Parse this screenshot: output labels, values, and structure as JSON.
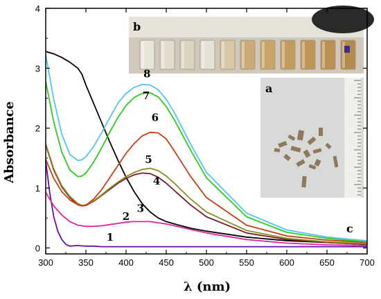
{
  "chart_data": {
    "type": "line",
    "title": "",
    "xlabel": "λ (nm)",
    "ylabel": "Absorbance",
    "xlim": [
      300,
      700
    ],
    "ylim": [
      -0.1,
      4
    ],
    "x_ticks": [
      300,
      350,
      400,
      450,
      500,
      550,
      600,
      650,
      700
    ],
    "y_ticks": [
      0,
      1,
      2,
      3,
      4
    ],
    "grid": false,
    "legend": "none",
    "series": [
      {
        "name": "1",
        "color": "#6a0dad",
        "x": [
          300,
          305,
          310,
          315,
          320,
          325,
          330,
          340,
          350,
          360,
          370,
          380,
          400,
          450,
          500,
          550,
          600,
          650,
          700
        ],
        "y": [
          1.45,
          0.92,
          0.52,
          0.28,
          0.14,
          0.06,
          0.03,
          0.04,
          0.03,
          0.03,
          0.02,
          0.02,
          0.02,
          0.02,
          0.02,
          0.02,
          0.02,
          0.02,
          0.02
        ]
      },
      {
        "name": "2",
        "color": "#e0249a",
        "x": [
          300,
          310,
          320,
          330,
          340,
          350,
          360,
          370,
          380,
          390,
          400,
          410,
          420,
          430,
          440,
          450,
          460,
          480,
          500,
          550,
          600,
          650,
          700
        ],
        "y": [
          0.93,
          0.7,
          0.55,
          0.44,
          0.38,
          0.36,
          0.36,
          0.37,
          0.39,
          0.41,
          0.43,
          0.44,
          0.44,
          0.44,
          0.42,
          0.4,
          0.37,
          0.31,
          0.25,
          0.14,
          0.08,
          0.05,
          0.04
        ]
      },
      {
        "name": "3",
        "color": "#000000",
        "x": [
          300,
          310,
          320,
          330,
          340,
          345,
          350,
          360,
          370,
          380,
          390,
          400,
          410,
          420,
          430,
          440,
          450,
          460,
          480,
          500,
          550,
          600,
          650,
          700
        ],
        "y": [
          3.28,
          3.24,
          3.18,
          3.1,
          3.0,
          2.9,
          2.72,
          2.4,
          2.08,
          1.76,
          1.46,
          1.18,
          0.94,
          0.74,
          0.6,
          0.5,
          0.44,
          0.4,
          0.33,
          0.28,
          0.18,
          0.12,
          0.09,
          0.06
        ]
      },
      {
        "name": "4",
        "color": "#7a1f2a",
        "x": [
          300,
          310,
          320,
          330,
          340,
          345,
          350,
          360,
          370,
          380,
          390,
          400,
          410,
          420,
          430,
          440,
          450,
          460,
          480,
          500,
          550,
          600,
          650,
          700
        ],
        "y": [
          1.72,
          1.3,
          1.02,
          0.84,
          0.72,
          0.7,
          0.71,
          0.78,
          0.88,
          0.98,
          1.08,
          1.16,
          1.22,
          1.25,
          1.24,
          1.18,
          1.08,
          0.96,
          0.72,
          0.52,
          0.25,
          0.14,
          0.09,
          0.06
        ]
      },
      {
        "name": "5",
        "color": "#8c8c1e",
        "x": [
          300,
          310,
          320,
          330,
          340,
          345,
          350,
          360,
          370,
          380,
          390,
          400,
          410,
          420,
          430,
          440,
          450,
          460,
          480,
          500,
          550,
          600,
          650,
          700
        ],
        "y": [
          1.74,
          1.32,
          1.04,
          0.86,
          0.74,
          0.71,
          0.72,
          0.79,
          0.89,
          1.0,
          1.1,
          1.19,
          1.26,
          1.31,
          1.33,
          1.29,
          1.2,
          1.08,
          0.82,
          0.6,
          0.29,
          0.16,
          0.1,
          0.07
        ]
      },
      {
        "name": "6",
        "color": "#c83c14",
        "x": [
          300,
          310,
          320,
          330,
          340,
          345,
          350,
          360,
          370,
          380,
          390,
          400,
          410,
          420,
          430,
          440,
          450,
          460,
          480,
          500,
          550,
          600,
          650,
          700
        ],
        "y": [
          1.48,
          1.16,
          0.94,
          0.8,
          0.72,
          0.7,
          0.71,
          0.82,
          0.98,
          1.18,
          1.38,
          1.58,
          1.74,
          1.87,
          1.93,
          1.92,
          1.82,
          1.62,
          1.2,
          0.84,
          0.38,
          0.2,
          0.13,
          0.09
        ]
      },
      {
        "name": "7",
        "color": "#2ecc1a",
        "x": [
          300,
          310,
          320,
          330,
          340,
          345,
          350,
          360,
          370,
          380,
          390,
          400,
          410,
          420,
          430,
          440,
          450,
          460,
          480,
          500,
          550,
          600,
          650,
          700
        ],
        "y": [
          2.78,
          2.1,
          1.6,
          1.3,
          1.19,
          1.2,
          1.25,
          1.44,
          1.68,
          1.94,
          2.18,
          2.38,
          2.51,
          2.58,
          2.59,
          2.52,
          2.36,
          2.14,
          1.64,
          1.17,
          0.52,
          0.26,
          0.16,
          0.1
        ]
      },
      {
        "name": "8",
        "color": "#4fc6f0",
        "x": [
          300,
          310,
          320,
          330,
          340,
          345,
          350,
          360,
          370,
          380,
          390,
          400,
          410,
          420,
          430,
          440,
          450,
          460,
          480,
          500,
          550,
          600,
          650,
          700
        ],
        "y": [
          3.22,
          2.48,
          1.9,
          1.56,
          1.46,
          1.47,
          1.52,
          1.7,
          1.93,
          2.18,
          2.42,
          2.58,
          2.68,
          2.73,
          2.72,
          2.64,
          2.48,
          2.26,
          1.74,
          1.26,
          0.58,
          0.3,
          0.18,
          0.12
        ]
      }
    ],
    "annotations": [
      "a",
      "b",
      "c"
    ]
  },
  "colors": {
    "axis": "#000000",
    "inset_b_bg": "#c9c2b5",
    "inset_a_bg": "#dcdcdc"
  }
}
